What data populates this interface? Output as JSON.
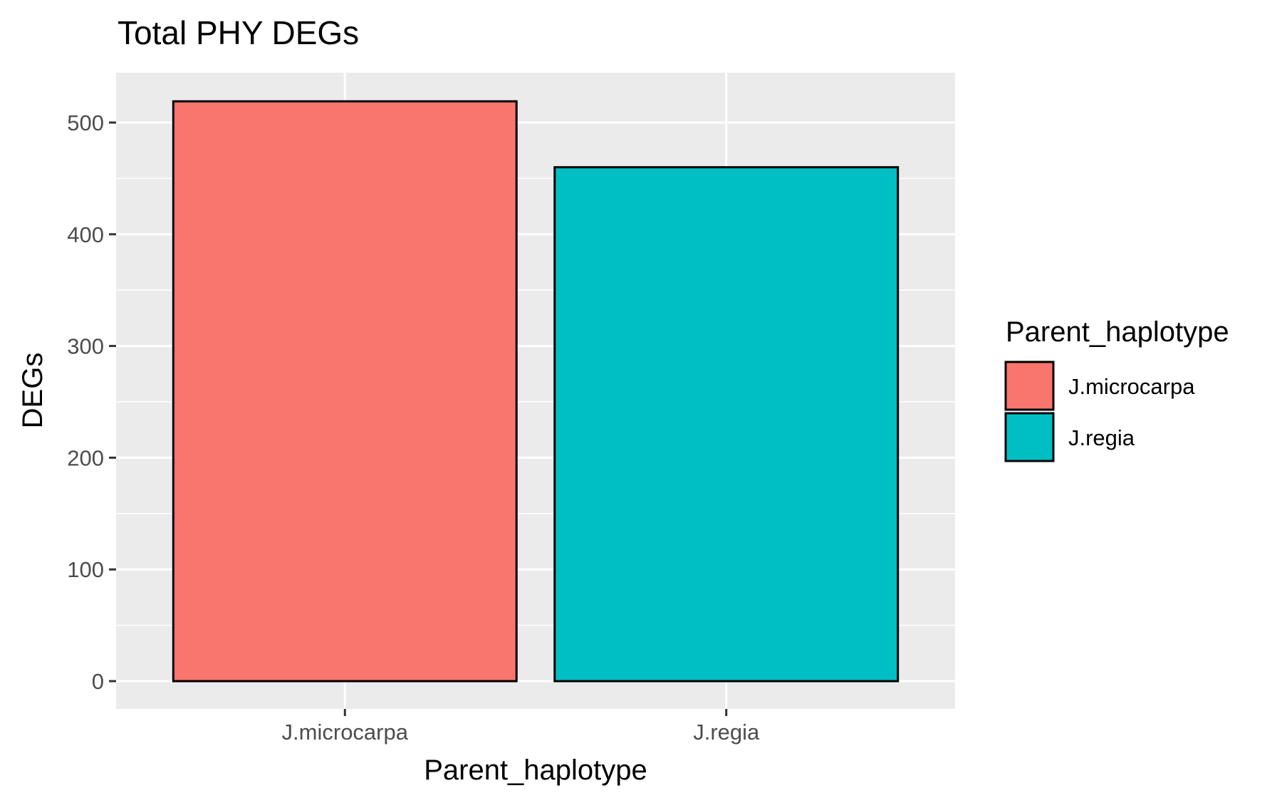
{
  "chart_data": {
    "type": "bar",
    "title": "Total PHY DEGs",
    "xlabel": "Parent_haplotype",
    "ylabel": "DEGs",
    "categories": [
      "J.microcarpa",
      "J.regia"
    ],
    "values": [
      519,
      460
    ],
    "colors": [
      "#F8766D",
      "#00BFC4"
    ],
    "ylim": [
      0,
      545
    ],
    "yticks": [
      0,
      100,
      200,
      300,
      400,
      500
    ],
    "ytick_labels": [
      "0",
      "100",
      "200",
      "300",
      "400",
      "500"
    ],
    "grid": true,
    "panel_background": "#EBEBEB",
    "gridline_color": "#FFFFFF",
    "bar_outline": "#000000",
    "legend": {
      "position": "right",
      "title": "Parent_haplotype",
      "items": [
        "J.microcarpa",
        "J.regia"
      ]
    }
  }
}
